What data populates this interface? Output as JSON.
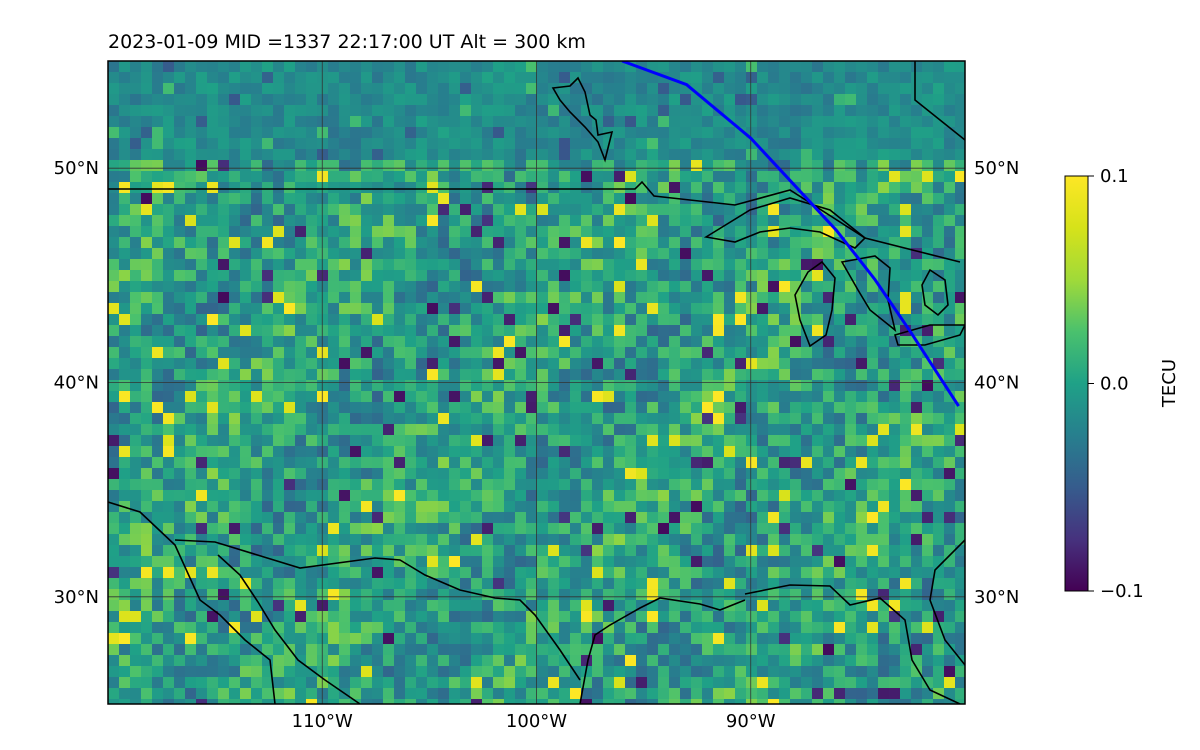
{
  "map": {
    "title": "2023-01-09  MID =1337    22:17:00  UT  Alt = 300 km",
    "colormap": "viridis",
    "lon_range": [
      -120,
      -80
    ],
    "lat_range": [
      25,
      55
    ],
    "lon_ticks": [
      {
        "lon": -110,
        "label": "110°W"
      },
      {
        "lon": -100,
        "label": "100°W"
      },
      {
        "lon": -90,
        "label": "90°W"
      }
    ],
    "lat_ticks": [
      {
        "lat": 50,
        "label": "50°N"
      },
      {
        "lat": 40,
        "label": "40°N"
      },
      {
        "lat": 30,
        "label": "30°N"
      }
    ],
    "gridlines": true,
    "boundary_color": "#000000",
    "track_color": "#0000ff",
    "track": [
      [
        -96.0,
        55.0
      ],
      [
        -93.0,
        53.9
      ],
      [
        -90.0,
        51.4
      ],
      [
        -86.0,
        47.1
      ],
      [
        -84.2,
        44.8
      ],
      [
        -82.5,
        42.3
      ],
      [
        -80.3,
        38.9
      ]
    ]
  },
  "colorbar": {
    "label": "TECU",
    "min": -0.1,
    "max": 0.1,
    "ticks": [
      {
        "value": 0.1,
        "label": "0.1"
      },
      {
        "value": 0.0,
        "label": "0.0"
      },
      {
        "value": -0.1,
        "label": "−0.1"
      }
    ]
  }
}
